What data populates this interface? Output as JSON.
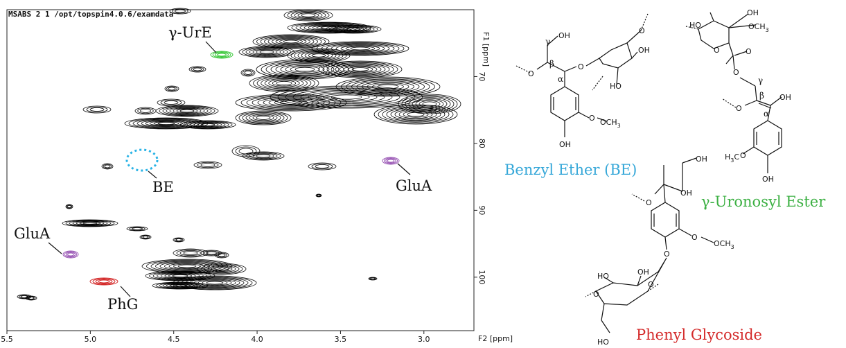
{
  "header": "MSABS  2  1  /opt/topspin4.0.6/examdata",
  "chart_data": {
    "type": "heatmap",
    "xlabel": "F2 [ppm]",
    "ylabel": "F1 [ppm]",
    "xlim": [
      5.5,
      2.7
    ],
    "ylim": [
      60,
      108
    ],
    "x_ticks": [
      "5.5",
      "5.0",
      "4.5",
      "4.0",
      "3.5",
      "3.0"
    ],
    "y_ticks": [
      "70",
      "80",
      "90",
      "100"
    ],
    "annotations": [
      {
        "text": "γ-UrE",
        "color": "#3cc83c"
      },
      {
        "text": "BE",
        "color": "#29b3e6"
      },
      {
        "text": "GluA",
        "color": "#9b59b6"
      },
      {
        "text": "GluA",
        "color": "#9b59b6"
      },
      {
        "text": "PhG",
        "color": "#d42a2a"
      }
    ]
  },
  "structures": {
    "benzyl_ether": {
      "name": "Benzyl Ether (BE)",
      "color": "#35a7d8"
    },
    "uronosyl_ester": {
      "name": "γ-Uronosyl Ester",
      "color": "#3cb043"
    },
    "phenyl_glycoside": {
      "name": "Phenyl Glycoside",
      "color": "#d42a2a"
    }
  },
  "chem_labels": {
    "oh": "OH",
    "ho": "HO",
    "o": "O",
    "och3": "OCH",
    "h3co": "H",
    "ch3_sub": "3",
    "ch_sub": "3",
    "alpha": "α",
    "beta": "β",
    "gamma": "γ"
  },
  "colors": {
    "contour": "#000000",
    "ure": "#3cc83c",
    "be": "#29b3e6",
    "glua": "#9b59b6",
    "phg": "#d42a2a"
  }
}
